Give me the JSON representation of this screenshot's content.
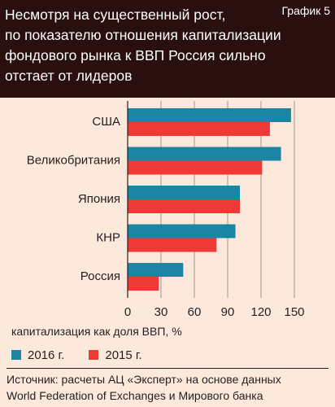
{
  "header": {
    "title_lines": [
      "Несмотря на существенный рост,",
      "по показателю отношения капитализации",
      "фондового рынка к ВВП Россия сильно",
      "отстает от лидеров"
    ],
    "label": "График 5"
  },
  "chart_data": {
    "type": "bar",
    "orientation": "horizontal",
    "categories": [
      "США",
      "Великобритания",
      "Япония",
      "КНР",
      "Россия"
    ],
    "series": [
      {
        "name": "2016 г.",
        "color": "#1a86a4",
        "values": [
          147,
          138,
          101,
          97,
          50
        ]
      },
      {
        "name": "2015 г.",
        "color": "#ee3a36",
        "values": [
          128,
          121,
          101,
          80,
          28
        ]
      }
    ],
    "xlim": [
      0,
      150
    ],
    "xticks": [
      "0",
      "30",
      "60",
      "90",
      "120",
      "150"
    ],
    "xlabel": "капитализация как доля ВВП, %",
    "grid": true,
    "legend_position": "bottom-left"
  },
  "source": {
    "lines": [
      "Источник: расчеты АЦ «Эксперт» на основе данных",
      "World Federation of Exchanges и Мирового банка"
    ]
  }
}
